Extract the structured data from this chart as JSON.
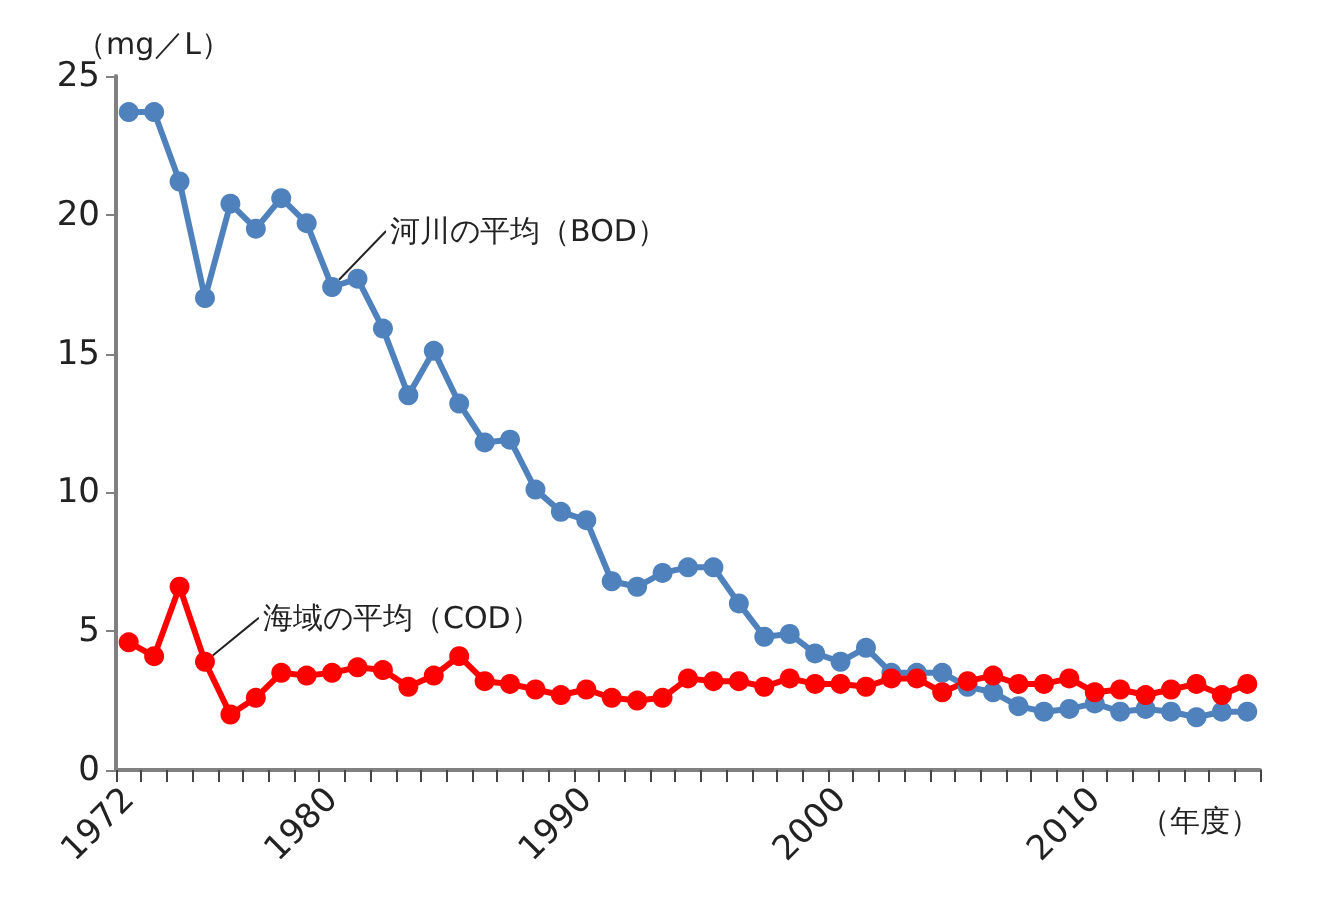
{
  "chart_data": {
    "type": "line",
    "ylabel": "（mg／L）",
    "xlabel": "（年度）",
    "categories": [
      "1972",
      null,
      null,
      null,
      null,
      null,
      null,
      null,
      "1980",
      null,
      null,
      null,
      null,
      null,
      null,
      null,
      null,
      null,
      "1990",
      null,
      null,
      null,
      null,
      null,
      null,
      null,
      null,
      null,
      "2000",
      null,
      null,
      null,
      null,
      null,
      null,
      null,
      null,
      null,
      "2010",
      null,
      null,
      null,
      null,
      null,
      null
    ],
    "series": [
      {
        "name": "河川の平均（BOD）",
        "color": "#4f81bd",
        "values": [
          23.7,
          23.7,
          21.2,
          17.0,
          20.4,
          19.5,
          20.6,
          19.7,
          17.4,
          17.7,
          15.9,
          13.5,
          15.1,
          13.2,
          11.8,
          11.9,
          10.1,
          9.3,
          9.0,
          6.8,
          6.6,
          7.1,
          7.3,
          7.3,
          6.0,
          4.8,
          4.9,
          4.2,
          3.9,
          4.4,
          3.5,
          3.5,
          3.5,
          3.0,
          2.8,
          2.3,
          2.1,
          2.2,
          2.4,
          2.1,
          2.2,
          2.1,
          1.9,
          2.1,
          2.1
        ]
      },
      {
        "name": "海域の平均（COD）",
        "color": "#ff0000",
        "values": [
          4.6,
          4.1,
          6.6,
          3.9,
          2.0,
          2.6,
          3.5,
          3.4,
          3.5,
          3.7,
          3.6,
          3.0,
          3.4,
          4.1,
          3.2,
          3.1,
          2.9,
          2.7,
          2.9,
          2.6,
          2.5,
          2.6,
          3.3,
          3.2,
          3.2,
          3.0,
          3.3,
          3.1,
          3.1,
          3.0,
          3.3,
          3.3,
          2.8,
          3.2,
          3.4,
          3.1,
          3.1,
          3.3,
          2.8,
          2.9,
          2.7,
          2.9,
          3.1,
          2.7,
          3.1
        ]
      }
    ],
    "ylim": [
      0,
      25
    ],
    "yticks": [
      0,
      5,
      10,
      15,
      20,
      25
    ],
    "grid": false,
    "legend": false,
    "marker": "circle",
    "line_style": "solid"
  }
}
